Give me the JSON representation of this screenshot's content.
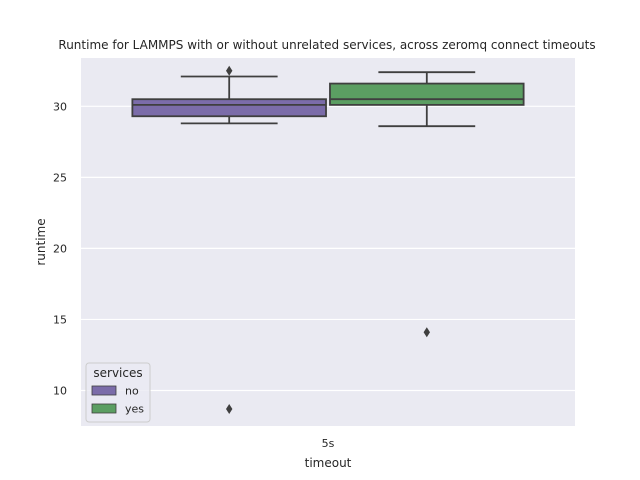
{
  "chart_data": {
    "type": "box",
    "title": "Runtime for LAMMPS with or without unrelated services, across zeromq connect timeouts",
    "xlabel": "timeout",
    "ylabel": "runtime",
    "categories": [
      "5s"
    ],
    "ylim": [
      7.5,
      33.4
    ],
    "yticks": [
      10,
      15,
      20,
      25,
      30
    ],
    "grid": true,
    "legend": {
      "title": "services",
      "position": "bottom-left"
    },
    "series": [
      {
        "name": "no",
        "color": "#7b6ca9",
        "boxes": [
          {
            "category": "5s",
            "whisker_low": 28.8,
            "q1": 29.3,
            "median": 30.1,
            "q3": 30.5,
            "whisker_high": 32.1,
            "outliers": [
              32.5,
              8.7
            ]
          }
        ]
      },
      {
        "name": "yes",
        "color": "#5b9e62",
        "boxes": [
          {
            "category": "5s",
            "whisker_low": 28.6,
            "q1": 30.1,
            "median": 30.5,
            "q3": 31.6,
            "whisker_high": 32.4,
            "outliers": [
              14.1
            ]
          }
        ]
      }
    ]
  }
}
